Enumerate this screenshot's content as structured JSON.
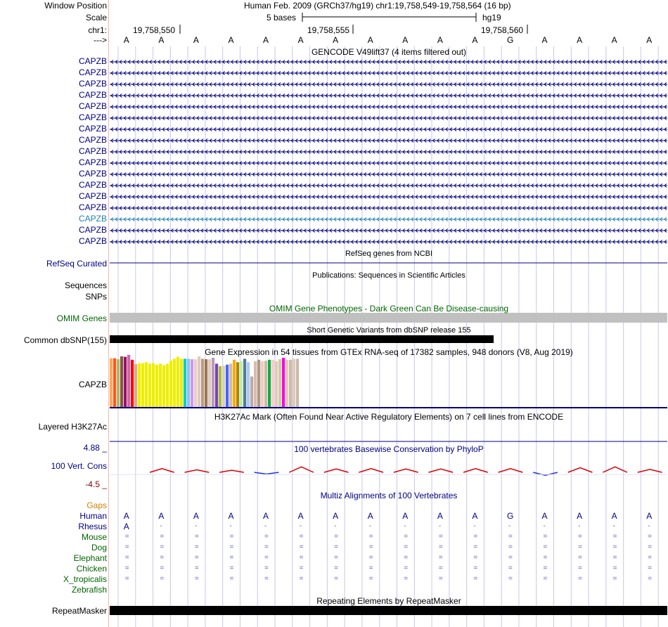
{
  "header": {
    "window_position_label": "Window Position",
    "window_position_value": "Human Feb. 2009 (GRCh37/hg19)   chr1:19,758,549-19,758,564 (16 bp)",
    "scale_label": "Scale",
    "scale_value": "5 bases",
    "scale_db": "hg19",
    "chrom_label": "chr1:",
    "coord_1": "19,758,550",
    "coord_2": "19,758,555",
    "coord_3": "19,758,560",
    "strand_label": "--->"
  },
  "bases": [
    "A",
    "A",
    "A",
    "A",
    "A",
    "A",
    "A",
    "A",
    "A",
    "A",
    "A",
    "G",
    "A",
    "A",
    "A",
    "A"
  ],
  "gencode": {
    "title": "GENCODE V49lift37 (4 items filtered out)",
    "gene_rows": [
      "CAPZB",
      "CAPZB",
      "CAPZB",
      "CAPZB",
      "CAPZB",
      "CAPZB",
      "CAPZB",
      "CAPZB",
      "CAPZB",
      "CAPZB",
      "CAPZB",
      "CAPZB",
      "CAPZB",
      "CAPZB",
      "CAPZB",
      "CAPZB",
      "CAPZB"
    ],
    "highlight_row": 14
  },
  "refseq": {
    "title": "RefSeq genes from NCBI",
    "label": "RefSeq Curated"
  },
  "publications": {
    "title": "Publications: Sequences in Scientific Articles",
    "label_1": "Sequences",
    "label_2": "SNPs"
  },
  "omim": {
    "title": "OMIM Gene Phenotypes - Dark Green Can Be Disease-causing",
    "label": "OMIM Genes"
  },
  "dbsnp": {
    "title": "Short Genetic Variants from dbSNP release 155",
    "label": "Common dbSNP(155)"
  },
  "gtex": {
    "title": "Gene Expression in 54 tissues from GTEx RNA-seq of 17382 samples, 948 donors (V8, Aug 2019)",
    "label": "CAPZB",
    "bar_values": [
      0.99,
      0.99,
      0.97,
      1.03,
      1.02,
      1.06,
      0.96,
      0.87,
      0.89,
      0.89,
      0.91,
      0.88,
      0.89,
      0.86,
      0.88,
      0.85,
      0.88,
      0.94,
      0.98,
      1.02,
      0.98,
      0.98,
      0.98,
      0.97,
      0.97,
      1.03,
      0.98,
      0.97,
      0.97,
      1.0,
      0.88,
      0.83,
      0.84,
      0.86,
      0.88,
      0.96,
      0.91,
      0.93,
      0.98,
      0.91,
      0.62,
      0.93,
      0.96,
      0.93,
      0.94,
      0.96,
      0.96,
      0.93,
      0.97,
      1.0,
      0.96,
      0.96,
      0.98,
      0.98
    ],
    "bar_colors": [
      "#FFAA55",
      "#FF5522",
      "#AABB66",
      "#885544",
      "#991166",
      "#CC66AA",
      "#FF0000",
      "#DDAA88",
      "#EEEE00",
      "#EEEE00",
      "#EEEE00",
      "#EEEE00",
      "#EEEE00",
      "#EEEE00",
      "#EEEE00",
      "#EEEE00",
      "#EEEE00",
      "#EEEE00",
      "#EEEE00",
      "#EEEE00",
      "#EEEE00",
      "#00CCCC",
      "#99BBEE",
      "#CC99EE",
      "#EECCCC",
      "#DDCCBB",
      "#BB9988",
      "#997755",
      "#DDCCBB",
      "#BB99BB",
      "#7744AA",
      "#AABB44",
      "#DDCCBB",
      "#4466FF",
      "#CCBBAA",
      "#FFAA00",
      "#AA8800",
      "#BBEEAA",
      "#557799",
      "#AACCEE",
      "#BBAAAA",
      "#DDBBAA",
      "#AA9988",
      "#EECCBB",
      "#CCBBAA",
      "#11AA44",
      "#FFCCCC",
      "#DDCCBB",
      "#CCCCAA",
      "#FF00DD",
      "#DDCCBB",
      "#CCBBAA",
      "#DDCCBB",
      "#CCBBAA"
    ]
  },
  "h3k27ac": {
    "title": "H3K27Ac Mark (Often Found Near Active Regulatory Elements) on 7 cell lines from ENCODE",
    "label": "Layered H3K27Ac"
  },
  "phylop": {
    "title": "100 vertebrates Basewise Conservation by PhyloP",
    "label": "100 Vert. Cons",
    "max_label": "4.88 _",
    "min_label": "-4.5 _",
    "base_scores": [
      0,
      0.9,
      0.6,
      0.5,
      -0.4,
      1.3,
      0.8,
      0.9,
      0.8,
      0.8,
      0.9,
      0.9,
      -0.7,
      1.1,
      1.3,
      0.7
    ]
  },
  "multiz": {
    "title": "Multiz Alignments of 100 Vertebrates",
    "gaps_label": "Gaps",
    "species": [
      {
        "name": "Human",
        "row": [
          "A",
          "A",
          "A",
          "A",
          "A",
          "A",
          "A",
          "A",
          "A",
          "A",
          "A",
          "G",
          "A",
          "A",
          "A",
          "A"
        ]
      },
      {
        "name": "Rhesus",
        "row": [
          "A",
          "-",
          "-",
          "-",
          "-",
          "-",
          "-",
          "-",
          "-",
          "-",
          "-",
          "-",
          "-",
          "-",
          "-",
          "-"
        ]
      },
      {
        "name": "Mouse",
        "row": [
          "=",
          "=",
          "=",
          "=",
          "=",
          "=",
          "=",
          "=",
          "=",
          "=",
          "=",
          "=",
          "=",
          "=",
          "=",
          "="
        ]
      },
      {
        "name": "Dog",
        "row": [
          "=",
          "=",
          "=",
          "=",
          "=",
          "=",
          "=",
          "=",
          "=",
          "=",
          "=",
          "=",
          "=",
          "=",
          "=",
          "="
        ]
      },
      {
        "name": "Elephant",
        "row": [
          "=",
          "=",
          "=",
          "=",
          "=",
          "=",
          "=",
          "=",
          "=",
          "=",
          "=",
          "=",
          "=",
          "=",
          "=",
          "="
        ]
      },
      {
        "name": "Chicken",
        "row": [
          "=",
          "=",
          "=",
          "=",
          "=",
          "=",
          "=",
          "=",
          "=",
          "=",
          "=",
          "=",
          "=",
          "=",
          "=",
          "="
        ]
      },
      {
        "name": "X_tropicalis",
        "row": [
          "=",
          "=",
          "=",
          "=",
          "=",
          "=",
          "=",
          "=",
          "=",
          "=",
          "=",
          "=",
          "=",
          "=",
          "=",
          "="
        ]
      },
      {
        "name": "Zebrafish",
        "row": [
          "",
          "",
          "",
          "",
          "",
          "",
          "",
          "",
          "",
          "",
          "",
          "",
          "",
          "",
          "",
          ""
        ]
      }
    ]
  },
  "repeatmasker": {
    "title": "Repeating Elements by RepeatMasker",
    "label": "RepeatMasker"
  },
  "colors": {
    "navy": "#000080",
    "highlight": "#2080b0",
    "grid": "#c8c8e8",
    "omim_gray": "#c0c0c0",
    "divider": "#000080"
  }
}
